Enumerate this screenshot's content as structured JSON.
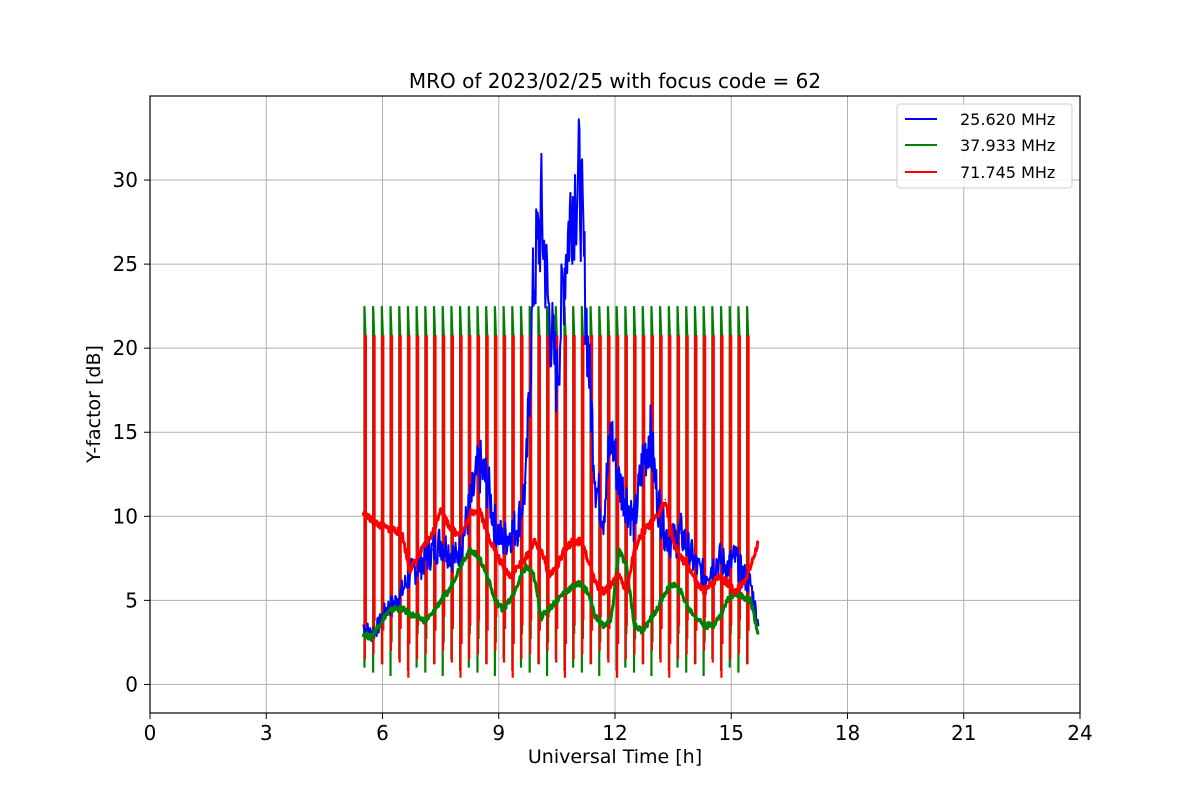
{
  "chart_data": {
    "type": "line",
    "title": "MRO of 2023/02/25 with focus code = 62",
    "xlabel": "Universal Time [h]",
    "ylabel": "Y-factor [dB]",
    "xlim": [
      0,
      24
    ],
    "ylim": [
      -1.7,
      35
    ],
    "xticks": [
      0,
      3,
      6,
      9,
      12,
      15,
      18,
      21,
      24
    ],
    "yticks": [
      0,
      5,
      10,
      15,
      20,
      25,
      30
    ],
    "grid": true,
    "legend_position": "top-right",
    "series": [
      {
        "name": "25.620 MHz",
        "color": "#0000ff",
        "x": [
          5.5,
          5.7,
          5.9,
          6.1,
          6.3,
          6.5,
          6.7,
          6.9,
          7.1,
          7.3,
          7.5,
          7.7,
          7.9,
          8.1,
          8.3,
          8.5,
          8.7,
          8.9,
          9.1,
          9.3,
          9.5,
          9.7,
          9.9,
          10.1,
          10.3,
          10.5,
          10.7,
          10.9,
          11.1,
          11.3,
          11.5,
          11.7,
          11.9,
          12.1,
          12.3,
          12.5,
          12.7,
          12.9,
          13.1,
          13.3,
          13.5,
          13.7,
          13.9,
          14.1,
          14.3,
          14.5,
          14.7,
          14.9,
          15.1,
          15.3,
          15.5,
          15.7
        ],
        "y": [
          3.5,
          3.0,
          3.5,
          4.5,
          4.8,
          5.5,
          6.5,
          7.0,
          7.5,
          8.0,
          8.5,
          8.0,
          7.5,
          9.0,
          11.0,
          13.0,
          12.0,
          9.5,
          8.5,
          9.0,
          9.5,
          12.0,
          24.0,
          28.0,
          22.0,
          18.0,
          25.0,
          29.0,
          30.0,
          20.0,
          12.0,
          10.0,
          15.0,
          12.0,
          11.0,
          9.5,
          13.0,
          15.0,
          11.0,
          9.0,
          8.5,
          9.0,
          8.0,
          7.0,
          6.5,
          7.0,
          7.5,
          7.0,
          7.5,
          6.5,
          6.0,
          3.5
        ]
      },
      {
        "name": "37.933 MHz",
        "color": "#008000",
        "x": [
          5.5,
          5.7,
          5.9,
          6.1,
          6.3,
          6.5,
          6.7,
          6.9,
          7.1,
          7.3,
          7.5,
          7.7,
          7.9,
          8.1,
          8.3,
          8.5,
          8.7,
          8.9,
          9.1,
          9.3,
          9.5,
          9.7,
          9.9,
          10.1,
          10.3,
          10.5,
          10.7,
          10.9,
          11.1,
          11.3,
          11.5,
          11.7,
          11.9,
          12.1,
          12.3,
          12.5,
          12.7,
          12.9,
          13.1,
          13.3,
          13.5,
          13.7,
          13.9,
          14.1,
          14.3,
          14.5,
          14.7,
          14.9,
          15.1,
          15.3,
          15.5,
          15.7
        ],
        "y": [
          3.0,
          2.8,
          3.5,
          4.2,
          4.5,
          4.5,
          4.2,
          4.0,
          3.8,
          4.2,
          5.0,
          5.5,
          6.5,
          7.5,
          8.0,
          7.5,
          6.5,
          5.0,
          4.5,
          5.0,
          6.0,
          7.0,
          6.5,
          4.0,
          4.5,
          5.0,
          5.5,
          5.8,
          6.0,
          5.5,
          4.0,
          3.5,
          3.8,
          8.0,
          7.0,
          3.5,
          3.2,
          3.8,
          4.5,
          5.5,
          6.0,
          5.5,
          4.5,
          4.0,
          3.5,
          3.5,
          4.0,
          5.0,
          5.5,
          5.2,
          5.0,
          3.0
        ]
      },
      {
        "name": "71.745 MHz",
        "color": "#ff0000",
        "x": [
          5.5,
          5.7,
          5.9,
          6.1,
          6.3,
          6.5,
          6.7,
          6.9,
          7.1,
          7.3,
          7.5,
          7.7,
          7.9,
          8.1,
          8.3,
          8.5,
          8.7,
          8.9,
          9.1,
          9.3,
          9.5,
          9.7,
          9.9,
          10.1,
          10.3,
          10.5,
          10.7,
          10.9,
          11.1,
          11.3,
          11.5,
          11.7,
          11.9,
          12.1,
          12.3,
          12.5,
          12.7,
          12.9,
          13.1,
          13.3,
          13.5,
          13.7,
          13.9,
          14.1,
          14.3,
          14.5,
          14.7,
          14.9,
          15.1,
          15.3,
          15.5,
          15.7
        ],
        "y": [
          10.2,
          9.8,
          9.5,
          9.3,
          9.2,
          9.0,
          6.8,
          7.5,
          8.3,
          9.0,
          10.5,
          9.5,
          9.0,
          9.2,
          10.2,
          10.5,
          9.0,
          8.0,
          7.0,
          6.5,
          7.0,
          7.5,
          8.5,
          8.0,
          6.5,
          7.0,
          8.0,
          8.5,
          8.5,
          7.5,
          6.0,
          5.5,
          6.0,
          6.5,
          5.5,
          8.0,
          9.0,
          9.5,
          10.0,
          11.0,
          8.5,
          7.5,
          7.0,
          6.0,
          5.5,
          6.0,
          6.5,
          6.0,
          5.5,
          6.0,
          7.0,
          8.5
        ]
      }
    ],
    "step_envelope": {
      "description": "periodic calibration spikes",
      "x_start": 5.5,
      "x_end": 15.6,
      "green_top": 22.5,
      "red_top": 20.7,
      "count": 45
    }
  }
}
